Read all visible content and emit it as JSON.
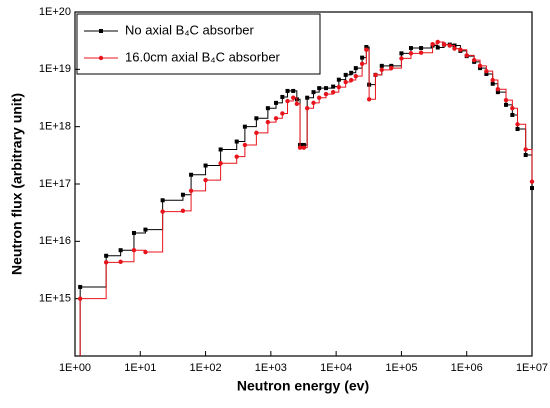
{
  "chart_data": {
    "type": "step",
    "x_label": "Neutron energy (ev)",
    "y_label": "Neutron flux (arbitrary unit)",
    "log_x": true,
    "log_y": true,
    "legend": "upper left",
    "xlim": [
      1,
      10000000
    ],
    "ylim": [
      100000000000000,
      100000000000000000000
    ],
    "xticks": [
      {
        "value": 1,
        "label": "1E+00"
      },
      {
        "value": 10,
        "label": "1E+01"
      },
      {
        "value": 100,
        "label": "1E+02"
      },
      {
        "value": 1000,
        "label": "1E+03"
      },
      {
        "value": 10000,
        "label": "1E+04"
      },
      {
        "value": 100000,
        "label": "1E+05"
      },
      {
        "value": 1000000,
        "label": "1E+06"
      },
      {
        "value": 10000000,
        "label": "1E+07"
      }
    ],
    "yticks": [
      {
        "value": 1000000000000000.0,
        "label": "1E+15"
      },
      {
        "value": 1e+16,
        "label": "1E+16"
      },
      {
        "value": 1e+17,
        "label": "1E+17"
      },
      {
        "value": 1e+18,
        "label": "1E+18"
      },
      {
        "value": 1e+19,
        "label": "1E+19"
      },
      {
        "value": 1e+20,
        "label": "1E+20"
      }
    ],
    "x": [
      1.2,
      3,
      5,
      8,
      12,
      22,
      45,
      60,
      100,
      170,
      300,
      400,
      600,
      900,
      1200,
      1500,
      1800,
      2200,
      2500,
      2800,
      3200,
      3600,
      4500,
      5500,
      7000,
      9000,
      11000,
      14000,
      17000,
      20000,
      25000,
      29000,
      32000,
      40000,
      50000,
      70000,
      100000,
      140000,
      200000,
      300000,
      360000,
      450000,
      550000,
      650000,
      800000,
      1000000,
      1300000,
      1600000,
      2000000,
      2500000,
      3000000,
      4000000,
      5000000,
      6000000,
      8000000,
      10000000
    ],
    "series": [
      {
        "name": "No axial B₄C absorber",
        "color": "#000000",
        "marker": "square",
        "values": [
          1600000000000000.0,
          5600000000000000.0,
          7000000000000000.0,
          1.4e+16,
          1.6e+16,
          5.2e+16,
          6.5e+16,
          1.45e+17,
          2.1e+17,
          4e+17,
          5.5e+17,
          1e+18,
          1.4e+18,
          2.1e+18,
          2.6e+18,
          3.3e+18,
          4.2e+18,
          4.2e+18,
          3e+18,
          4.8e+17,
          4.8e+17,
          3.2e+18,
          4e+18,
          4.7e+18,
          4.7e+18,
          5e+18,
          6.6e+18,
          8e+18,
          8.7e+18,
          1.05e+19,
          1.6e+19,
          2.45e+19,
          5.4e+18,
          8e+18,
          1.15e+19,
          1.15e+19,
          1.9e+19,
          2.35e+19,
          2.35e+19,
          2.6e+19,
          2.4e+19,
          2.7e+19,
          2.7e+19,
          2.6e+19,
          2.1e+19,
          1.7e+19,
          1.35e+19,
          1.05e+19,
          8.3e+18,
          5.6e+18,
          4e+18,
          2.4e+18,
          1.6e+18,
          9.1e+17,
          3.2e+17,
          8.5e+16
        ]
      },
      {
        "name": "16.0cm axial B₄C absorber",
        "color": "#e8141c",
        "marker": "circle",
        "values": [
          1000000000000000.0,
          4300000000000000.0,
          4400000000000000.0,
          7000000000000000.0,
          6500000000000000.0,
          3.3e+16,
          3.4e+16,
          7.6e+16,
          1.17e+17,
          2.3e+17,
          3e+17,
          4.8e+17,
          7.8e+17,
          1.2e+18,
          1.4e+18,
          1.7e+18,
          2.8e+18,
          3.2e+18,
          2.5e+18,
          4.3e+17,
          4.3e+17,
          2.1e+18,
          2.6e+18,
          3.2e+18,
          3.7e+18,
          4e+18,
          4.9e+18,
          6e+18,
          6.5e+18,
          7.6e+18,
          1.25e+19,
          2.2e+19,
          3e+18,
          8e+18,
          9.8e+18,
          1.05e+19,
          1.55e+19,
          1.9e+19,
          1.95e+19,
          2.75e+19,
          3e+19,
          2.7e+19,
          2.6e+19,
          2.3e+19,
          2.2e+19,
          1.75e+19,
          1.45e+19,
          1.15e+19,
          9.3e+18,
          6.5e+18,
          4.5e+18,
          2.9e+18,
          2.1e+18,
          1.1e+18,
          4e+17,
          1.1e+17
        ]
      }
    ]
  }
}
